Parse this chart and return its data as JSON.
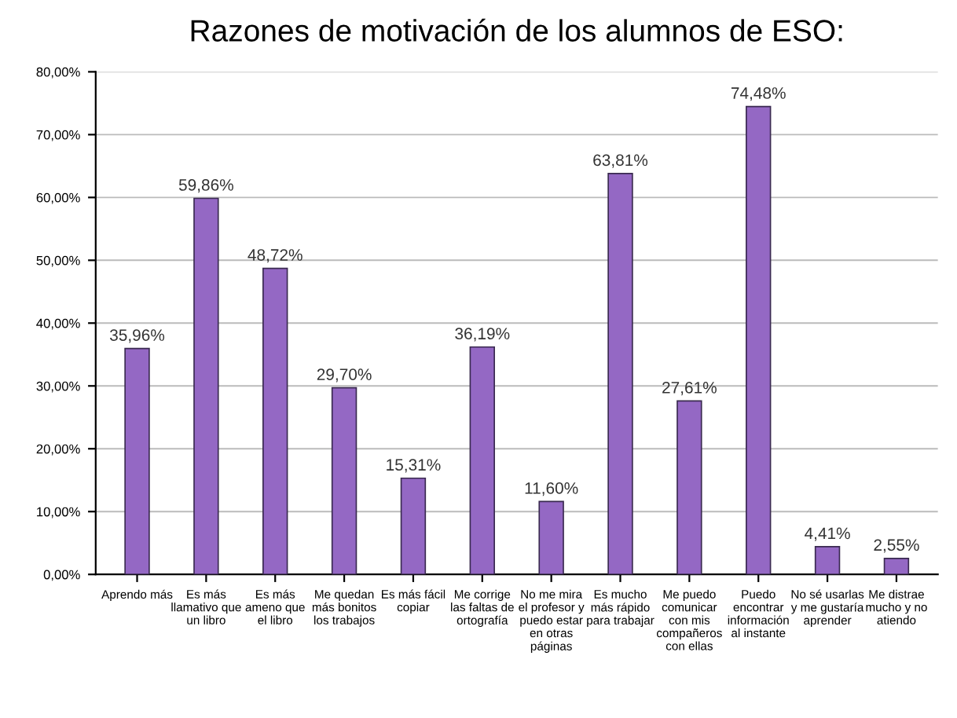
{
  "chart_data": {
    "type": "bar",
    "title": "Razones de motivación de los alumnos de ESO:",
    "categories": [
      "Aprendo más",
      "Es más\nllamativo que\nun libro",
      "Es más\nameno que\nel libro",
      "Me quedan\nmás bonitos\nlos trabajos",
      "Es más fácil\ncopiar",
      "Me corrige\nlas faltas de\nortografía",
      "No me mira\nel profesor y\npuedo estar\nen otras\npáginas",
      "Es mucho\nmás rápido\npara trabajar",
      "Me puedo\ncomunicar\ncon mis\ncompañeros\ncon ellas",
      "Puedo\nencontrar\ninformación\nal instante",
      "No sé usarlas\ny me gustaría\naprender",
      "Me distrae\nmucho y no\natiendo"
    ],
    "values": [
      35.96,
      59.86,
      48.72,
      29.7,
      15.31,
      36.19,
      11.6,
      63.81,
      27.61,
      74.48,
      4.41,
      2.55
    ],
    "value_labels": [
      "35,96%",
      "59,86%",
      "48,72%",
      "29,70%",
      "15,31%",
      "36,19%",
      "11,60%",
      "63,81%",
      "27,61%",
      "74,48%",
      "4,41%",
      "2,55%"
    ],
    "color": "#9468c4",
    "ylim": [
      0,
      80
    ],
    "yticks": [
      {
        "value": 0,
        "label": "0,00%"
      },
      {
        "value": 10,
        "label": "10,00%"
      },
      {
        "value": 20,
        "label": "20,00%"
      },
      {
        "value": 30,
        "label": "30,00%"
      },
      {
        "value": 40,
        "label": "40,00%"
      },
      {
        "value": 50,
        "label": "50,00%"
      },
      {
        "value": 60,
        "label": "60,00%"
      },
      {
        "value": 70,
        "label": "70,00%"
      },
      {
        "value": 80,
        "label": "80,00%"
      }
    ],
    "grid": "y"
  }
}
